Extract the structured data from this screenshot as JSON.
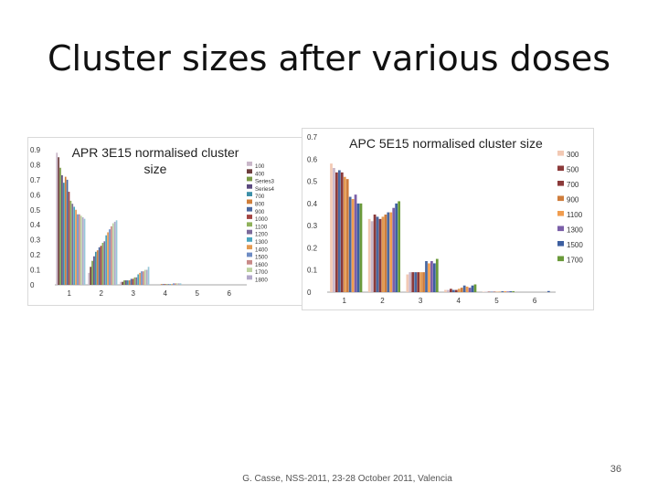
{
  "title": "Cluster sizes after various doses",
  "footer": "G. Casse, NSS-2011, 23-28 October 2011, Valencia",
  "page_number": "36",
  "chart_data": [
    {
      "type": "bar",
      "title": "APR 3E15 normalised cluster size",
      "xlabel": "",
      "ylabel": "",
      "ylim": [
        0,
        0.9
      ],
      "yticks": [
        "0",
        "0.1",
        "0.2",
        "0.3",
        "0.4",
        "0.5",
        "0.6",
        "0.7",
        "0.8",
        "0.9"
      ],
      "categories": [
        "1",
        "2",
        "3",
        "4",
        "5",
        "6"
      ],
      "legend_position": "right",
      "series": [
        {
          "name": "100",
          "color": "#c9b7c9",
          "values": [
            0.88,
            0.08,
            0.02,
            0.0,
            0.0,
            0.0
          ]
        },
        {
          "name": "400",
          "color": "#6d3d3d",
          "values": [
            0.85,
            0.12,
            0.02,
            0.0,
            0.0,
            0.0
          ]
        },
        {
          "name": "Series3",
          "color": "#7a9a46",
          "values": [
            0.78,
            0.16,
            0.03,
            0.0,
            0.0,
            0.0
          ]
        },
        {
          "name": "Series4",
          "color": "#5b4a7f",
          "values": [
            0.73,
            0.19,
            0.03,
            0.0,
            0.0,
            0.0
          ]
        },
        {
          "name": "700",
          "color": "#3c8fa8",
          "values": [
            0.68,
            0.22,
            0.03,
            0.0,
            0.0,
            0.0
          ]
        },
        {
          "name": "800",
          "color": "#d07f3a",
          "values": [
            0.72,
            0.23,
            0.03,
            0.005,
            0.0,
            0.0
          ]
        },
        {
          "name": "900",
          "color": "#4a68a0",
          "values": [
            0.7,
            0.25,
            0.04,
            0.005,
            0.0,
            0.0
          ]
        },
        {
          "name": "1000",
          "color": "#a34443",
          "values": [
            0.62,
            0.26,
            0.04,
            0.005,
            0.0,
            0.0
          ]
        },
        {
          "name": "1100",
          "color": "#8fb15b",
          "values": [
            0.56,
            0.28,
            0.05,
            0.005,
            0.0,
            0.0
          ]
        },
        {
          "name": "1200",
          "color": "#7b6a9a",
          "values": [
            0.54,
            0.29,
            0.05,
            0.005,
            0.0,
            0.0
          ]
        },
        {
          "name": "1300",
          "color": "#4aa5bf",
          "values": [
            0.52,
            0.33,
            0.07,
            0.005,
            0.0,
            0.0
          ]
        },
        {
          "name": "1400",
          "color": "#e39a52",
          "values": [
            0.5,
            0.35,
            0.08,
            0.005,
            0.0,
            0.0
          ]
        },
        {
          "name": "1500",
          "color": "#6e8cc4",
          "values": [
            0.47,
            0.37,
            0.09,
            0.01,
            0.0,
            0.0
          ]
        },
        {
          "name": "1600",
          "color": "#c88a88",
          "values": [
            0.47,
            0.39,
            0.09,
            0.01,
            0.0,
            0.0
          ]
        },
        {
          "name": "1700",
          "color": "#bdd2a0",
          "values": [
            0.46,
            0.41,
            0.1,
            0.01,
            0.0,
            0.0
          ]
        },
        {
          "name": "1800",
          "color": "#b2a8c9",
          "values": [
            0.45,
            0.42,
            0.1,
            0.01,
            0.0,
            0.0
          ]
        },
        {
          "name": "",
          "color": "#98c8d8",
          "values": [
            0.44,
            0.43,
            0.12,
            0.01,
            0.0,
            0.0
          ]
        }
      ]
    },
    {
      "type": "bar",
      "title": "APC 5E15 normalised cluster size",
      "xlabel": "",
      "ylabel": "",
      "ylim": [
        0,
        0.7
      ],
      "yticks": [
        "0",
        "0.1",
        "0.2",
        "0.3",
        "0.4",
        "0.5",
        "0.6",
        "0.7"
      ],
      "categories": [
        "1",
        "2",
        "3",
        "4",
        "5",
        "6"
      ],
      "legend_position": "right",
      "series": [
        {
          "name": "300",
          "color": "#f2c9b4",
          "values": [
            0.58,
            0.33,
            0.08,
            0.01,
            0.002,
            0.0
          ]
        },
        {
          "name": "",
          "color": "#c9b7c9",
          "values": [
            0.56,
            0.32,
            0.09,
            0.01,
            0.002,
            0.0
          ]
        },
        {
          "name": "500",
          "color": "#8b3a3a",
          "values": [
            0.54,
            0.35,
            0.09,
            0.015,
            0.002,
            0.0
          ]
        },
        {
          "name": "",
          "color": "#4a68a0",
          "values": [
            0.55,
            0.34,
            0.09,
            0.01,
            0.002,
            0.0
          ]
        },
        {
          "name": "700",
          "color": "#8b3a3a",
          "values": [
            0.54,
            0.33,
            0.09,
            0.01,
            0.002,
            0.0
          ]
        },
        {
          "name": "",
          "color": "#e39a52",
          "values": [
            0.52,
            0.34,
            0.09,
            0.015,
            0.002,
            0.0
          ]
        },
        {
          "name": "900",
          "color": "#cf7d3c",
          "values": [
            0.51,
            0.35,
            0.09,
            0.02,
            0.002,
            0.0
          ]
        },
        {
          "name": "",
          "color": "#4a68a0",
          "values": [
            0.43,
            0.36,
            0.14,
            0.03,
            0.004,
            0.0
          ]
        },
        {
          "name": "1100",
          "color": "#f09d4f",
          "values": [
            0.42,
            0.36,
            0.13,
            0.025,
            0.004,
            0.0
          ]
        },
        {
          "name": "1300",
          "color": "#7b5fa8",
          "values": [
            0.44,
            0.38,
            0.14,
            0.02,
            0.003,
            0.0
          ]
        },
        {
          "name": "1500",
          "color": "#3d5fa0",
          "values": [
            0.4,
            0.4,
            0.13,
            0.03,
            0.004,
            0.005
          ]
        },
        {
          "name": "1700",
          "color": "#6a9a3a",
          "values": [
            0.4,
            0.41,
            0.15,
            0.035,
            0.004,
            0.0
          ]
        }
      ]
    }
  ]
}
